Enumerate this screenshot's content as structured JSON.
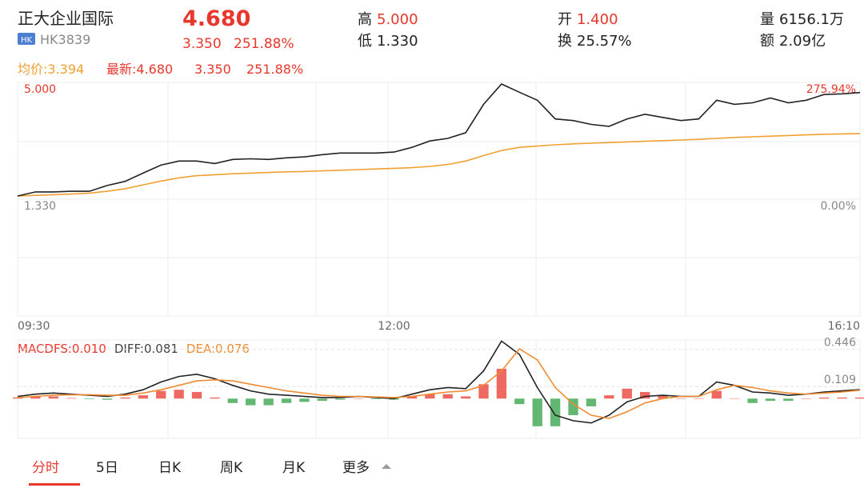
{
  "header": {
    "name": "正大企业国际",
    "badge": "HK",
    "code": "HK3839",
    "price": "4.680",
    "change": "3.350",
    "change_pct": "251.88%",
    "stats": [
      {
        "label": "高",
        "value": "5.000"
      },
      {
        "label": "低",
        "value": "1.330"
      },
      {
        "label": "开",
        "value": "1.400"
      },
      {
        "label": "换",
        "value": "25.57%"
      },
      {
        "label": "量",
        "value": "6156.1万"
      },
      {
        "label": "额",
        "value": "2.09亿"
      }
    ]
  },
  "chart_data": [
    {
      "type": "line",
      "categories": [
        "09:30",
        null,
        null,
        null,
        null,
        null,
        null,
        null,
        null,
        null,
        null,
        null,
        null,
        null,
        null,
        null,
        null,
        null,
        null,
        null,
        null,
        "12:00",
        null,
        null,
        null,
        null,
        null,
        null,
        null,
        null,
        null,
        null,
        null,
        null,
        null,
        null,
        null,
        null,
        null,
        null,
        null,
        null,
        null,
        null,
        null,
        null,
        null,
        "16:10"
      ],
      "series": [
        {
          "name": "最新:4.680",
          "color": "#222222",
          "values": [
            1.43,
            1.56,
            1.56,
            1.58,
            1.58,
            1.76,
            1.89,
            2.15,
            2.4,
            2.53,
            2.53,
            2.45,
            2.58,
            2.6,
            2.58,
            2.63,
            2.66,
            2.73,
            2.78,
            2.78,
            2.78,
            2.81,
            2.96,
            3.16,
            3.24,
            3.42,
            4.31,
            4.95,
            4.69,
            4.44,
            3.85,
            3.8,
            3.68,
            3.62,
            3.85,
            4.0,
            3.9,
            3.8,
            3.85,
            4.44,
            4.31,
            4.36,
            4.51,
            4.36,
            4.44,
            4.62,
            4.64,
            4.68
          ]
        },
        {
          "name": "均价:3.394",
          "color": "#f0a030",
          "values": [
            1.43,
            1.45,
            1.47,
            1.49,
            1.52,
            1.58,
            1.66,
            1.78,
            1.9,
            2.0,
            2.07,
            2.1,
            2.13,
            2.15,
            2.17,
            2.19,
            2.2,
            2.22,
            2.24,
            2.26,
            2.28,
            2.3,
            2.32,
            2.36,
            2.42,
            2.53,
            2.7,
            2.86,
            2.96,
            3.0,
            3.04,
            3.07,
            3.09,
            3.11,
            3.13,
            3.15,
            3.17,
            3.19,
            3.21,
            3.24,
            3.27,
            3.29,
            3.31,
            3.33,
            3.35,
            3.37,
            3.38,
            3.394
          ]
        }
      ],
      "latest_change": "3.350",
      "latest_change_pct": "251.88%",
      "ylim": [
        -2.34,
        5.0
      ],
      "yticks": [
        {
          "value": 5.0,
          "label": "5.000"
        },
        {
          "value": 1.33,
          "label": "1.330"
        }
      ],
      "y2lim": [
        -275.94,
        275.94
      ],
      "y2ticks": [
        {
          "value": 275.94,
          "label": "275.94%"
        },
        {
          "value": 0,
          "label": "0.00%"
        }
      ],
      "grid": true
    },
    {
      "type": "macd",
      "series": [
        {
          "name": "MACDFS:0.010",
          "kind": "bar",
          "color": "#e8372c",
          "down_color": "#2ea043",
          "values": [
            0.01,
            0.02,
            0.02,
            0.005,
            -0.005,
            -0.01,
            0.01,
            0.03,
            0.07,
            0.08,
            0.06,
            0.01,
            -0.04,
            -0.06,
            -0.06,
            -0.04,
            -0.03,
            -0.02,
            -0.01,
            0,
            -0.005,
            -0.01,
            0.02,
            0.04,
            0.04,
            0.02,
            0.13,
            0.27,
            -0.05,
            -0.25,
            -0.25,
            -0.15,
            -0.07,
            0.03,
            0.09,
            0.06,
            0.03,
            0,
            0,
            0.07,
            0,
            -0.04,
            -0.02,
            -0.02,
            0,
            0.01,
            0.01,
            0.01
          ]
        },
        {
          "name": "DIFF:0.081",
          "kind": "line",
          "color": "#222222",
          "values": [
            0.02,
            0.04,
            0.05,
            0.04,
            0.03,
            0.02,
            0.04,
            0.08,
            0.15,
            0.2,
            0.22,
            0.18,
            0.12,
            0.07,
            0.04,
            0.03,
            0.02,
            0.01,
            0.01,
            0.02,
            0.01,
            0.0,
            0.04,
            0.08,
            0.1,
            0.09,
            0.25,
            0.52,
            0.4,
            0.1,
            -0.15,
            -0.2,
            -0.22,
            -0.15,
            -0.03,
            0.02,
            0.03,
            0.02,
            0.02,
            0.15,
            0.12,
            0.06,
            0.05,
            0.03,
            0.04,
            0.06,
            0.07,
            0.081
          ]
        },
        {
          "name": "DEA:0.076",
          "kind": "line",
          "color": "#f08a30",
          "values": [
            0.01,
            0.02,
            0.03,
            0.035,
            0.035,
            0.03,
            0.03,
            0.05,
            0.08,
            0.12,
            0.16,
            0.17,
            0.16,
            0.13,
            0.1,
            0.07,
            0.05,
            0.03,
            0.02,
            0.02,
            0.015,
            0.01,
            0.02,
            0.04,
            0.06,
            0.07,
            0.12,
            0.25,
            0.45,
            0.35,
            0.1,
            -0.05,
            -0.15,
            -0.18,
            -0.12,
            -0.04,
            0.0,
            0.02,
            0.02,
            0.08,
            0.12,
            0.1,
            0.07,
            0.05,
            0.04,
            0.05,
            0.06,
            0.076
          ]
        }
      ],
      "ylim": [
        -0.36,
        0.53
      ],
      "yticks": [
        0.446,
        0.109
      ]
    }
  ],
  "tabs": [
    "分时",
    "5日",
    "日K",
    "周K",
    "月K",
    "更多"
  ]
}
